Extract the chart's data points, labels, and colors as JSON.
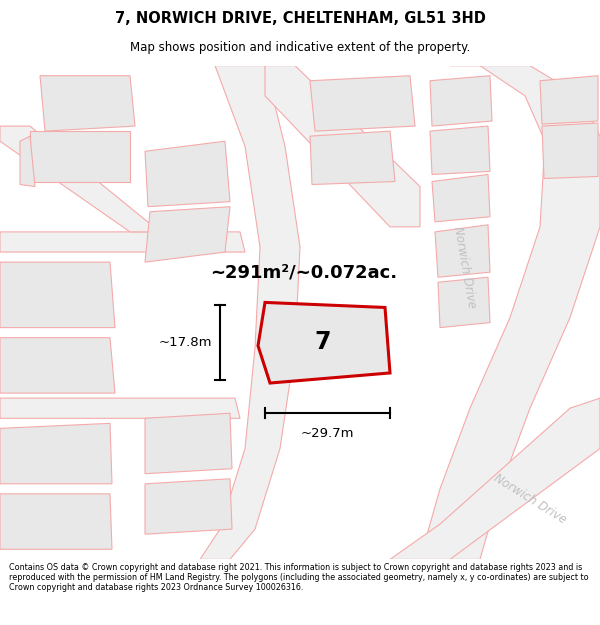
{
  "title": "7, NORWICH DRIVE, CHELTENHAM, GL51 3HD",
  "subtitle": "Map shows position and indicative extent of the property.",
  "footer": "Contains OS data © Crown copyright and database right 2021. This information is subject to Crown copyright and database rights 2023 and is reproduced with the permission of HM Land Registry. The polygons (including the associated geometry, namely x, y co-ordinates) are subject to Crown copyright and database rights 2023 Ordnance Survey 100026316.",
  "area_text": "~291m²/~0.072ac.",
  "width_text": "~29.7m",
  "height_text": "~17.8m",
  "number_text": "7",
  "road_label1": "Norwich Drive",
  "road_label2": "Norwich Drive",
  "parcel_fill": "#e8e8e8",
  "parcel_edge": "#f5aaaa",
  "road_fill": "#f0f0f0",
  "road_edge": "#f5aaaa",
  "highlight_edge": "#cc0000",
  "highlight_fill": "#e8e8e8",
  "map_bg": "#fafafa"
}
